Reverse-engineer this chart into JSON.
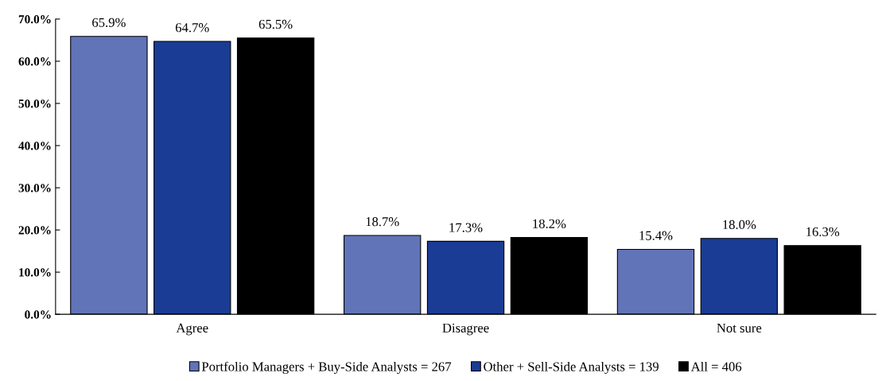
{
  "chart_data": {
    "type": "bar",
    "categories": [
      "Agree",
      "Disagree",
      "Not sure"
    ],
    "series": [
      {
        "name": "Portfolio Managers + Buy-Side Analysts = 267",
        "color": "#6174b8",
        "values": [
          65.9,
          18.7,
          15.4
        ],
        "value_labels": [
          "65.9%",
          "18.7%",
          "15.4%"
        ]
      },
      {
        "name": "Other + Sell-Side Analysts = 139",
        "color": "#1b3c94",
        "values": [
          64.7,
          17.3,
          18.0
        ],
        "value_labels": [
          "64.7%",
          "17.3%",
          "18.0%"
        ]
      },
      {
        "name": "All = 406",
        "color": "#000000",
        "values": [
          65.5,
          18.2,
          16.3
        ],
        "value_labels": [
          "65.5%",
          "18.2%",
          "16.3%"
        ]
      }
    ],
    "ylim": [
      0,
      70
    ],
    "yticks": [
      {
        "value": 0,
        "label": "0.0%"
      },
      {
        "value": 10,
        "label": "10.0%"
      },
      {
        "value": 20,
        "label": "20.0%"
      },
      {
        "value": 30,
        "label": "30.0%"
      },
      {
        "value": 40,
        "label": "40.0%"
      },
      {
        "value": 50,
        "label": "50.0%"
      },
      {
        "value": 60,
        "label": "60.0%"
      },
      {
        "value": 70,
        "label": "70.0%"
      }
    ],
    "grid": false,
    "legend": "bottom"
  }
}
